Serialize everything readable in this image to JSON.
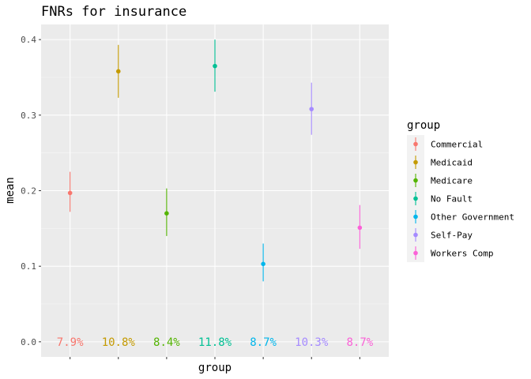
{
  "chart_data": {
    "type": "errorbar",
    "title": "FNRs for insurance",
    "xlabel": "group",
    "ylabel": "mean",
    "ylim": [
      -0.02,
      0.42
    ],
    "yticks": [
      "0.0",
      "0.1",
      "0.2",
      "0.3",
      "0.4"
    ],
    "ytick_values": [
      0.0,
      0.1,
      0.2,
      0.3,
      0.4
    ],
    "grid": true,
    "legend_title": "group",
    "legend_position": "right",
    "categories": [
      "Commercial",
      "Medicaid",
      "Medicare",
      "No Fault",
      "Other Government",
      "Self-Pay",
      "Workers Comp"
    ],
    "series": [
      {
        "name": "Commercial",
        "color": "#F8766D",
        "mean": 0.197,
        "lower": 0.172,
        "upper": 0.225,
        "label": "7.9%"
      },
      {
        "name": "Medicaid",
        "color": "#C49A00",
        "mean": 0.358,
        "lower": 0.323,
        "upper": 0.393,
        "label": "10.8%"
      },
      {
        "name": "Medicare",
        "color": "#53B400",
        "mean": 0.17,
        "lower": 0.14,
        "upper": 0.203,
        "label": "8.4%"
      },
      {
        "name": "No Fault",
        "color": "#00C094",
        "mean": 0.365,
        "lower": 0.331,
        "upper": 0.4,
        "label": "11.8%"
      },
      {
        "name": "Other Government",
        "color": "#00B6EB",
        "mean": 0.103,
        "lower": 0.08,
        "upper": 0.13,
        "label": "8.7%"
      },
      {
        "name": "Self-Pay",
        "color": "#A58AFF",
        "mean": 0.308,
        "lower": 0.274,
        "upper": 0.343,
        "label": "10.3%"
      },
      {
        "name": "Workers Comp",
        "color": "#FB61D7",
        "mean": 0.151,
        "lower": 0.123,
        "upper": 0.181,
        "label": "8.7%"
      }
    ]
  }
}
